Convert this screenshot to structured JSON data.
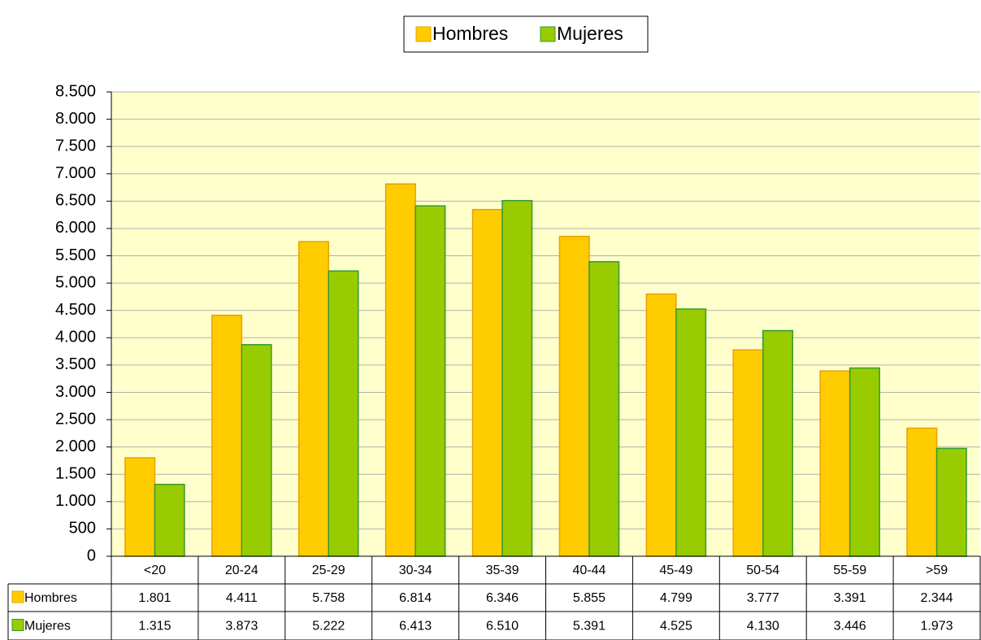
{
  "chart_data": {
    "type": "bar",
    "categories": [
      "<20",
      "20-24",
      "25-29",
      "30-34",
      "35-39",
      "40-44",
      "45-49",
      "50-54",
      "55-59",
      ">59"
    ],
    "series": [
      {
        "name": "Hombres",
        "color": "#FFCC00",
        "values": [
          1801,
          4411,
          5758,
          6814,
          6346,
          5855,
          4799,
          3777,
          3391,
          2344
        ],
        "value_labels": [
          "1.801",
          "4.411",
          "5.758",
          "6.814",
          "6.346",
          "5.855",
          "4.799",
          "3.777",
          "3.391",
          "2.344"
        ]
      },
      {
        "name": "Mujeres",
        "color": "#99CC00",
        "values": [
          1315,
          3873,
          5222,
          6413,
          6510,
          5391,
          4525,
          4130,
          3446,
          1973
        ],
        "value_labels": [
          "1.315",
          "3.873",
          "5.222",
          "6.413",
          "6.510",
          "5.391",
          "4.525",
          "4.130",
          "3.446",
          "1.973"
        ]
      }
    ],
    "ylim": [
      0,
      8500
    ],
    "yticks": [
      0,
      500,
      {
        "value": 1000,
        "label": "1.000"
      },
      {
        "value": 1500,
        "label": "1.500"
      },
      {
        "value": 2000,
        "label": "2.000"
      },
      {
        "value": 2500,
        "label": "2.500"
      },
      {
        "value": 3000,
        "label": "3.000"
      },
      {
        "value": 3500,
        "label": "3.500"
      },
      {
        "value": 4000,
        "label": "4.000"
      },
      {
        "value": 4500,
        "label": "4.500"
      },
      {
        "value": 5000,
        "label": "5.000"
      },
      {
        "value": 5500,
        "label": "5.500"
      },
      {
        "value": 6000,
        "label": "6.000"
      },
      {
        "value": 6500,
        "label": "6.500"
      },
      {
        "value": 7000,
        "label": "7.000"
      },
      {
        "value": 7500,
        "label": "7.500"
      },
      {
        "value": 8000,
        "label": "8.000"
      },
      {
        "value": 8500,
        "label": "8.500"
      }
    ],
    "grid": true,
    "legend": "top"
  }
}
